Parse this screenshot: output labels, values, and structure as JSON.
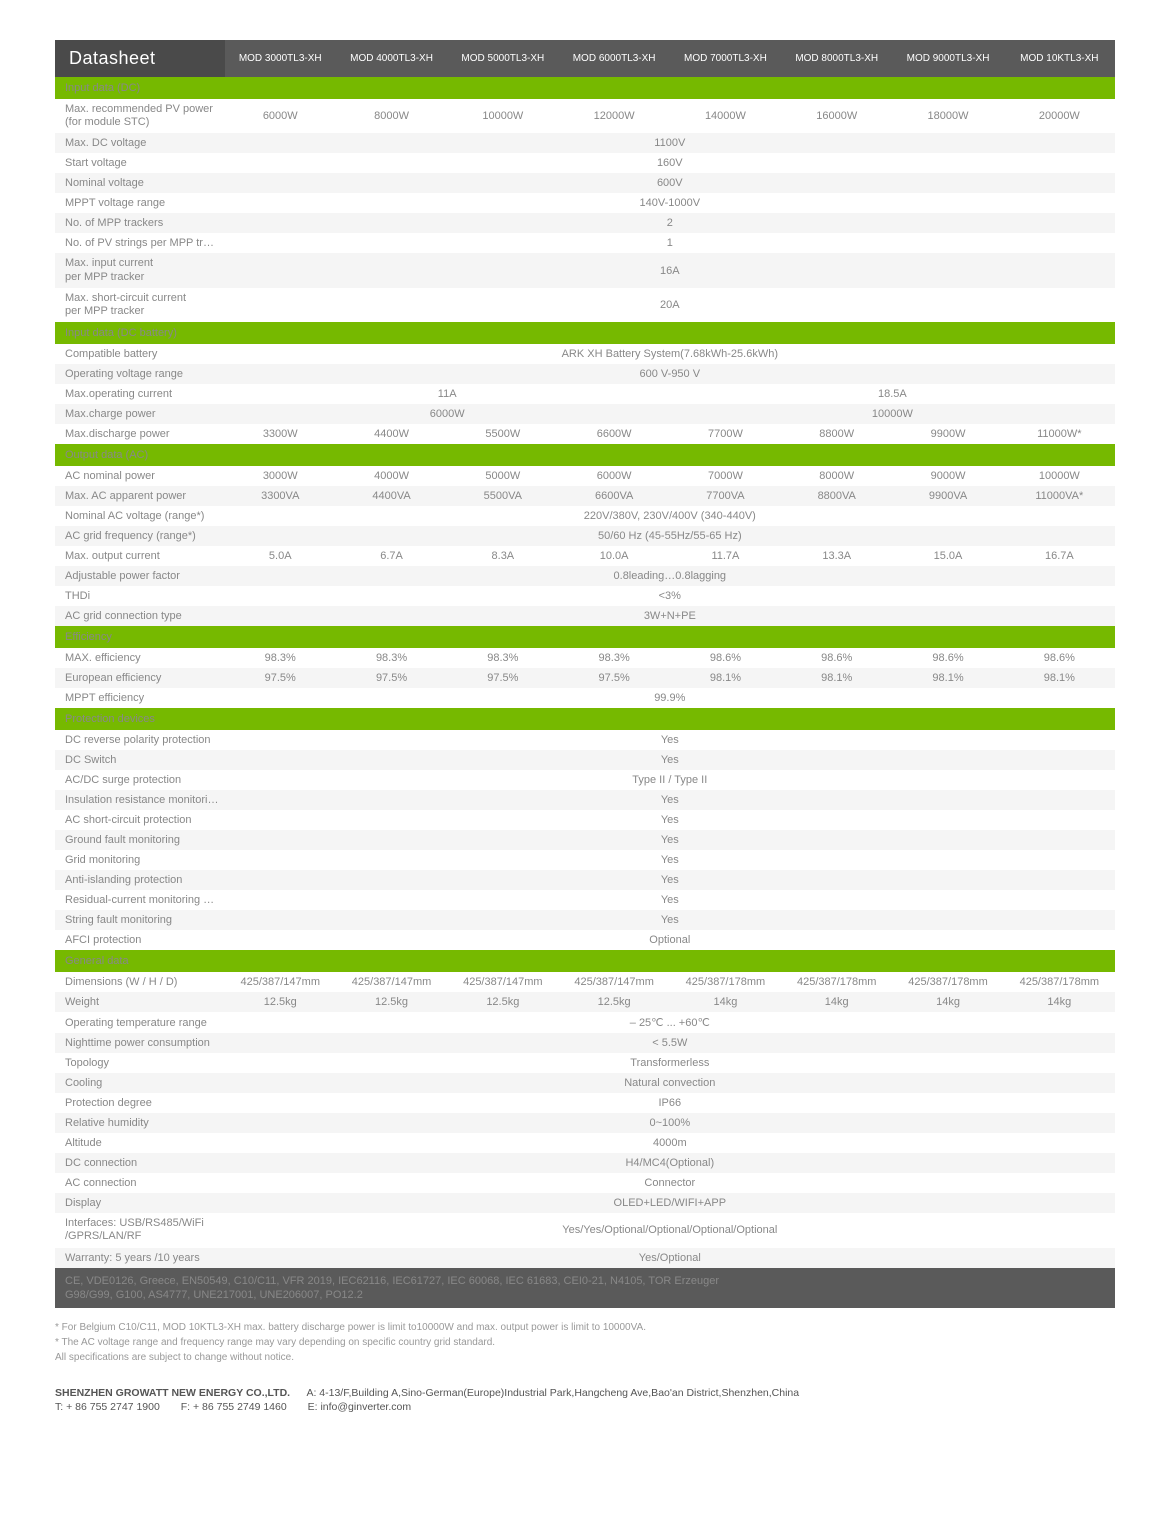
{
  "colors": {
    "green": "#76b900",
    "darkgray": "#5a5a5a",
    "darkgray2": "#4a4a4a",
    "rowalt": "#f5f5f5",
    "text": "#888"
  },
  "header": {
    "title": "Datasheet",
    "models": [
      "MOD 3000TL3-XH",
      "MOD 4000TL3-XH",
      "MOD 5000TL3-XH",
      "MOD 6000TL3-XH",
      "MOD 7000TL3-XH",
      "MOD 8000TL3-XH",
      "MOD 9000TL3-XH",
      "MOD 10KTL3-XH"
    ]
  },
  "sections": [
    {
      "title": "Input data (DC)",
      "rows": [
        {
          "label": "Max. recommended PV power\n(for module STC)",
          "labelClass": "sub",
          "cells": [
            "6000W",
            "8000W",
            "10000W",
            "12000W",
            "14000W",
            "16000W",
            "18000W",
            "20000W"
          ]
        },
        {
          "label": "Max. DC voltage",
          "span": "1100V"
        },
        {
          "label": "Start voltage",
          "span": "160V"
        },
        {
          "label": "Nominal voltage",
          "span": "600V"
        },
        {
          "label": "MPPT voltage range",
          "span": "140V-1000V"
        },
        {
          "label": "No. of MPP trackers",
          "span": "2"
        },
        {
          "label": "No. of PV strings per MPP tracker",
          "span": "1"
        },
        {
          "label": "Max. input current\nper MPP tracker",
          "labelClass": "sub",
          "span": "16A"
        },
        {
          "label": "Max. short-circuit current\nper MPP tracker",
          "labelClass": "sub",
          "span": "20A"
        }
      ]
    },
    {
      "title": "Input data (DC battery)",
      "rows": [
        {
          "label": "Compatible battery",
          "span": "ARK XH Battery System(7.68kWh-25.6kWh)"
        },
        {
          "label": "Operating voltage range",
          "span": "600 V-950 V"
        },
        {
          "label": "Max.operating current",
          "half": [
            "11A",
            "18.5A"
          ]
        },
        {
          "label": "Max.charge power",
          "half": [
            "6000W",
            "10000W"
          ]
        },
        {
          "label": "Max.discharge power",
          "cells": [
            "3300W",
            "4400W",
            "5500W",
            "6600W",
            "7700W",
            "8800W",
            "9900W",
            "11000W*"
          ]
        }
      ]
    },
    {
      "title": "Output data (AC)",
      "rows": [
        {
          "label": "AC nominal power",
          "cells": [
            "3000W",
            "4000W",
            "5000W",
            "6000W",
            "7000W",
            "8000W",
            "9000W",
            "10000W"
          ]
        },
        {
          "label": "Max. AC apparent power",
          "cells": [
            "3300VA",
            "4400VA",
            "5500VA",
            "6600VA",
            "7700VA",
            "8800VA",
            "9900VA",
            "11000VA*"
          ]
        },
        {
          "label": "Nominal AC voltage (range*)",
          "span": "220V/380V, 230V/400V (340-440V)"
        },
        {
          "label": "AC grid frequency (range*)",
          "span": "50/60 Hz (45-55Hz/55-65 Hz)"
        },
        {
          "label": "Max. output current",
          "cells": [
            "5.0A",
            "6.7A",
            "8.3A",
            "10.0A",
            "11.7A",
            "13.3A",
            "15.0A",
            "16.7A"
          ]
        },
        {
          "label": "Adjustable power factor",
          "span": "0.8leading…0.8lagging"
        },
        {
          "label": "THDi",
          "span": "<3%"
        },
        {
          "label": "AC grid connection type",
          "span": "3W+N+PE"
        }
      ]
    },
    {
      "title": "Efficiency",
      "rows": [
        {
          "label": "MAX. efficiency",
          "cells": [
            "98.3%",
            "98.3%",
            "98.3%",
            "98.3%",
            "98.6%",
            "98.6%",
            "98.6%",
            "98.6%"
          ]
        },
        {
          "label": "European efficiency",
          "cells": [
            "97.5%",
            "97.5%",
            "97.5%",
            "97.5%",
            "98.1%",
            "98.1%",
            "98.1%",
            "98.1%"
          ]
        },
        {
          "label": "MPPT efficiency",
          "span": "99.9%"
        }
      ]
    },
    {
      "title": "Protection devices",
      "rows": [
        {
          "label": "DC reverse polarity protection",
          "span": "Yes"
        },
        {
          "label": "DC Switch",
          "span": "Yes"
        },
        {
          "label": "AC/DC surge protection",
          "span": "Type II / Type II"
        },
        {
          "label": "Insulation resistance monitoring",
          "span": "Yes"
        },
        {
          "label": "AC short-circuit protection",
          "span": "Yes"
        },
        {
          "label": "Ground fault monitoring",
          "span": "Yes"
        },
        {
          "label": "Grid monitoring",
          "span": "Yes"
        },
        {
          "label": "Anti-islanding  protection",
          "span": "Yes"
        },
        {
          "label": "Residual-current  monitoring unit",
          "span": "Yes"
        },
        {
          "label": "String fault monitoring",
          "span": "Yes"
        },
        {
          "label": "AFCI protection",
          "span": "Optional"
        }
      ]
    },
    {
      "title": "General data",
      "rows": [
        {
          "label": "Dimensions (W / H / D)",
          "cells": [
            "425/387/147mm",
            "425/387/147mm",
            "425/387/147mm",
            "425/387/147mm",
            "425/387/178mm",
            "425/387/178mm",
            "425/387/178mm",
            "425/387/178mm"
          ]
        },
        {
          "label": "Weight",
          "cells": [
            "12.5kg",
            "12.5kg",
            "12.5kg",
            "12.5kg",
            "14kg",
            "14kg",
            "14kg",
            "14kg"
          ]
        },
        {
          "label": "Operating temperature range",
          "span": "– 25℃ ... +60℃"
        },
        {
          "label": "Nighttime power consumption",
          "span": "< 5.5W"
        },
        {
          "label": "Topology",
          "span": "Transformerless"
        },
        {
          "label": "Cooling",
          "span": "Natural convection"
        },
        {
          "label": "Protection degree",
          "span": "IP66"
        },
        {
          "label": "Relative humidity",
          "span": "0~100%"
        },
        {
          "label": "Altitude",
          "span": "4000m"
        },
        {
          "label": "DC connection",
          "span": "H4/MC4(Optional)"
        },
        {
          "label": "AC connection",
          "span": "Connector"
        },
        {
          "label": "Display",
          "span": "OLED+LED/WIFI+APP"
        },
        {
          "label": "Interfaces: USB/RS485/WiFi\n/GPRS/LAN/RF",
          "labelClass": "sub",
          "span": "Yes/Yes/Optional/Optional/Optional/Optional"
        },
        {
          "label": "Warranty: 5 years /10 years",
          "span": "Yes/Optional"
        }
      ]
    }
  ],
  "cert": "CE, VDE0126, Greece, EN50549, C10/C11, VFR 2019,  IEC62116, IEC61727, IEC 60068, IEC 61683, CEI0-21, N4105, TOR Erzeuger\nG98/G99, G100, AS4777, UNE217001, UNE206007, PO12.2",
  "notes": [
    "* For Belgium C10/C11, MOD 10KTL3-XH max. battery discharge power is limit to10000W and max. output power is limit to 10000VA.",
    "* The AC voltage range and frequency range may vary depending on specific country grid standard.\n   All specifications are subject to change without notice."
  ],
  "footer": {
    "company": "SHENZHEN GROWATT NEW ENERGY CO.,LTD.",
    "address": "A: 4-13/F,Building A,Sino-German(Europe)Industrial Park,Hangcheng Ave,Bao'an District,Shenzhen,China",
    "tel": "T:  + 86 755 2747 1900",
    "fax": "F:  + 86 755 2749 1460",
    "email": "E:  info@ginverter.com"
  },
  "layout": {
    "col1_width": "16%",
    "datacol_width": "10.5%"
  }
}
